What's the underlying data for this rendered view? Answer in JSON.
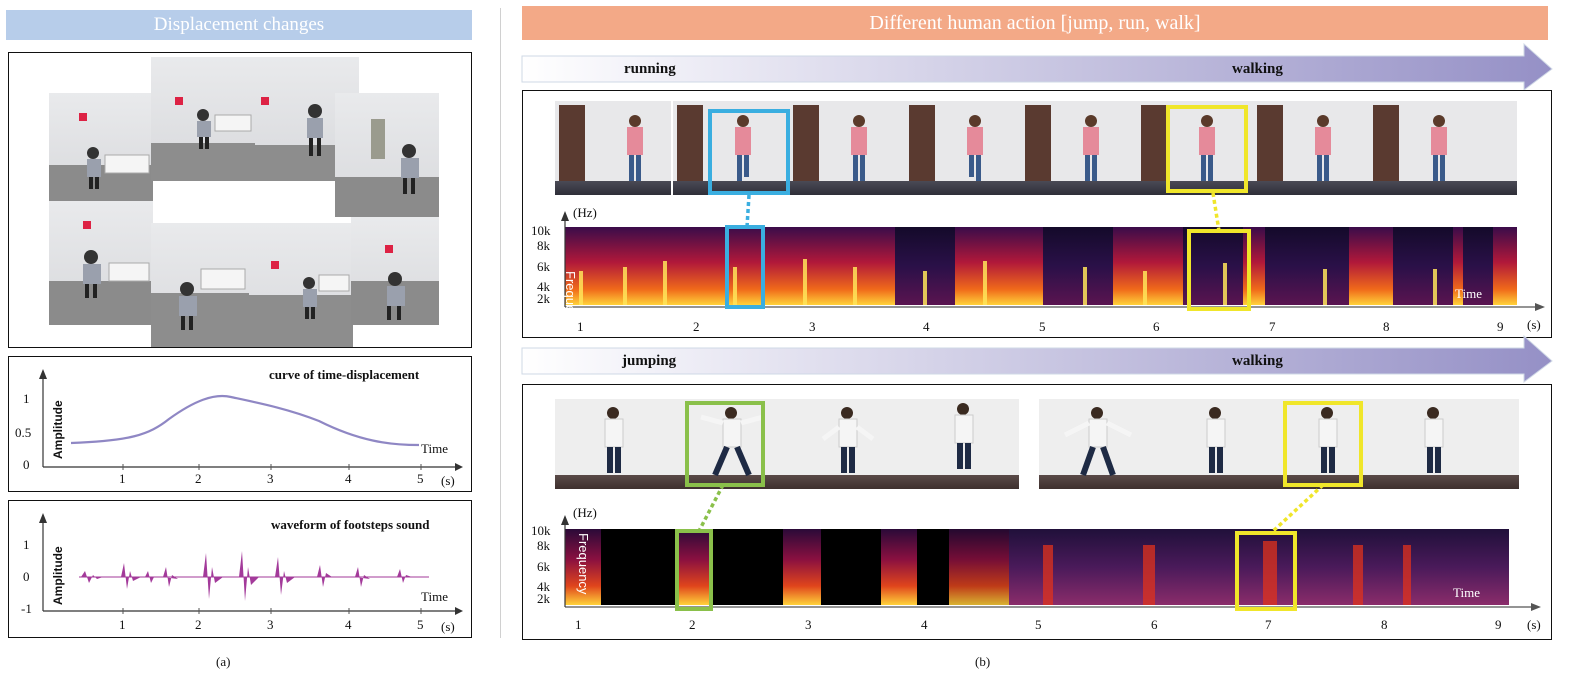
{
  "left": {
    "banner": "Displacement changes",
    "curve_plot": {
      "title": "curve of time-displacement",
      "ylabel": "Amplitude",
      "xlabel": "Time",
      "unit": "(s)",
      "yticks": [
        "1",
        "0.5",
        "0"
      ],
      "xticks": [
        "1",
        "2",
        "3",
        "4",
        "5"
      ],
      "color": "#8f87c4"
    },
    "wave_plot": {
      "title": "waveform of footsteps sound",
      "ylabel": "Amplitude",
      "xlabel": "Time",
      "unit": "(s)",
      "yticks": [
        "1",
        "0",
        "-1"
      ],
      "xticks": [
        "1",
        "2",
        "3",
        "4",
        "5"
      ],
      "color": "#a33a9a"
    },
    "fig_label": "(a)"
  },
  "right": {
    "banner": "Different human action [jump, run, walk]",
    "row1": {
      "arrow_left": "running",
      "arrow_right": "walking",
      "freq_unit": "(Hz)",
      "freq_label": "Frequency",
      "freq_ticks": [
        "10k",
        "8k",
        "6k",
        "4k",
        "2k"
      ],
      "time_label": "Time",
      "unit": "(s)",
      "xticks": [
        "1",
        "2",
        "3",
        "4",
        "5",
        "6",
        "7",
        "8",
        "9"
      ],
      "highlight_colors": [
        "#3aaee0",
        "#f0e62a"
      ]
    },
    "row2": {
      "arrow_left": "jumping",
      "arrow_right": "walking",
      "freq_unit": "(Hz)",
      "freq_label": "Frequency",
      "freq_ticks": [
        "10k",
        "8k",
        "6k",
        "4k",
        "2k"
      ],
      "time_label": "Time",
      "unit": "(s)",
      "xticks": [
        "1",
        "2",
        "3",
        "4",
        "5",
        "6",
        "7",
        "8",
        "9"
      ],
      "highlight_colors": [
        "#8ac04a",
        "#f0e62a"
      ]
    },
    "fig_label": "(b)"
  }
}
